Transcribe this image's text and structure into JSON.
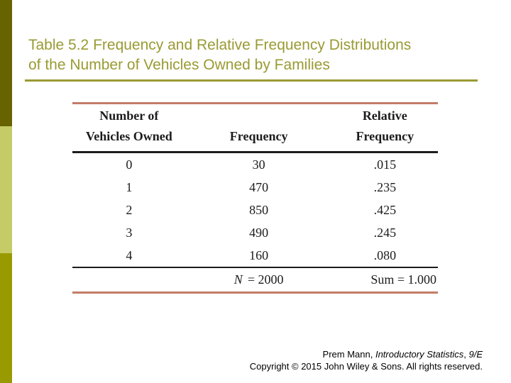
{
  "title": {
    "line1": "Table 5.2 Frequency and Relative Frequency Distributions",
    "line2": "of the Number of Vehicles Owned by Families"
  },
  "table": {
    "headers": {
      "col1_line1": "Number of",
      "col1_line2": "Vehicles Owned",
      "col2": "Frequency",
      "col3_line1": "Relative",
      "col3_line2": "Frequency"
    },
    "rows": [
      {
        "vehicles": "0",
        "frequency": "30",
        "relative_frequency": ".015"
      },
      {
        "vehicles": "1",
        "frequency": "470",
        "relative_frequency": ".235"
      },
      {
        "vehicles": "2",
        "frequency": "850",
        "relative_frequency": ".425"
      },
      {
        "vehicles": "3",
        "frequency": "490",
        "relative_frequency": ".245"
      },
      {
        "vehicles": "4",
        "frequency": "160",
        "relative_frequency": ".080"
      }
    ],
    "summary": {
      "n_symbol": "N",
      "n_value": "= 2000",
      "sum_text": "Sum = 1.000"
    }
  },
  "credits": {
    "author_prefix": "Prem Mann, ",
    "book_title": "Introductory Statistics",
    "separator": ", ",
    "edition": "9/E",
    "copyright": "Copyright © 2015 John Wiley & Sons. All rights reserved."
  },
  "colors": {
    "accent_bar_top": "#666300",
    "accent_bar_middle": "#c5cb66",
    "accent_bar_bottom": "#999a00",
    "title_text": "#9a9a33",
    "title_rule": "#9a9a33",
    "table_accent_rule": "#c27c68",
    "table_ink": "#1c1c1c",
    "credits_text": "#000000"
  }
}
